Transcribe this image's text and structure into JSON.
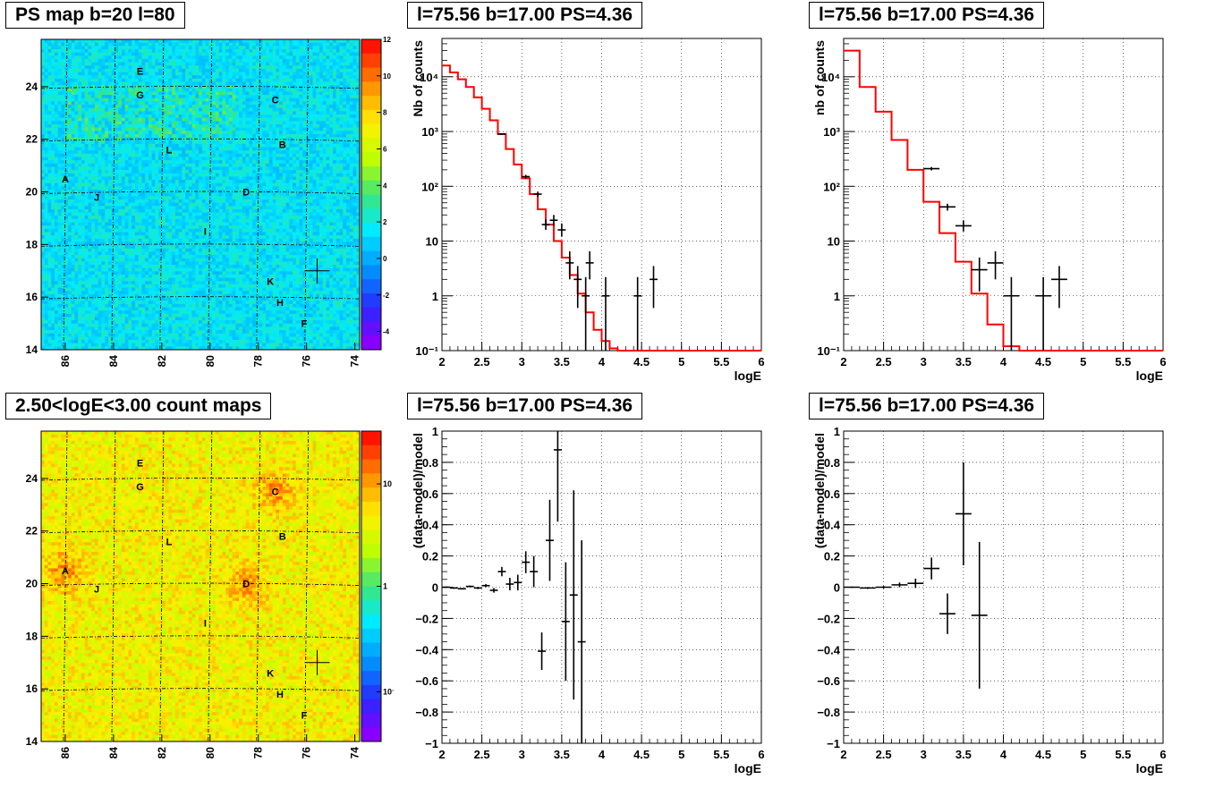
{
  "chart_data": [
    {
      "id": "ps_map",
      "type": "heatmap",
      "title": "PS map b=20 l=80",
      "xlim": [
        87,
        73.8
      ],
      "ylim": [
        14,
        25.8
      ],
      "xticks": [
        "86",
        "84",
        "82",
        "80",
        "78",
        "76",
        "74"
      ],
      "yticks": [
        "14",
        "16",
        "18",
        "20",
        "22",
        "24"
      ],
      "colorbar": {
        "min": -5,
        "max": 12,
        "ticks": [
          "12",
          "10",
          "8",
          "6",
          "4",
          "2",
          "0",
          "-2",
          "-4"
        ],
        "scale": "linear"
      },
      "dominant_value": 0.5,
      "sources": [
        {
          "label": "E",
          "l": 82.9,
          "b": 24.6
        },
        {
          "label": "G",
          "l": 82.9,
          "b": 23.7
        },
        {
          "label": "C",
          "l": 77.3,
          "b": 23.5
        },
        {
          "label": "L",
          "l": 81.7,
          "b": 21.6
        },
        {
          "label": "B",
          "l": 77.0,
          "b": 21.8
        },
        {
          "label": "A",
          "l": 86.0,
          "b": 20.5
        },
        {
          "label": "J",
          "l": 84.7,
          "b": 19.8
        },
        {
          "label": "D",
          "l": 78.5,
          "b": 20.0
        },
        {
          "label": "I",
          "l": 80.2,
          "b": 18.5
        },
        {
          "label": "K",
          "l": 77.5,
          "b": 16.6
        },
        {
          "label": "H",
          "l": 77.1,
          "b": 15.8
        },
        {
          "label": "F",
          "l": 76.1,
          "b": 15.0
        }
      ],
      "marker": {
        "l": 75.56,
        "b": 17.0
      }
    },
    {
      "id": "count_map",
      "type": "heatmap",
      "title": "2.50<logE<3.00 count maps",
      "xlim": [
        87,
        73.8
      ],
      "ylim": [
        14,
        25.8
      ],
      "xticks": [
        "86",
        "84",
        "82",
        "80",
        "78",
        "76",
        "74"
      ],
      "yticks": [
        "14",
        "16",
        "18",
        "20",
        "22",
        "24"
      ],
      "colorbar": {
        "scale": "log",
        "ticks": [
          "10",
          "1",
          "10⁻¹"
        ]
      },
      "sources": [
        {
          "label": "E",
          "l": 82.9,
          "b": 24.6
        },
        {
          "label": "G",
          "l": 82.9,
          "b": 23.7
        },
        {
          "label": "C",
          "l": 77.3,
          "b": 23.5
        },
        {
          "label": "L",
          "l": 81.7,
          "b": 21.6
        },
        {
          "label": "B",
          "l": 77.0,
          "b": 21.8
        },
        {
          "label": "A",
          "l": 86.0,
          "b": 20.5
        },
        {
          "label": "J",
          "l": 84.7,
          "b": 19.8
        },
        {
          "label": "D",
          "l": 78.5,
          "b": 20.0
        },
        {
          "label": "I",
          "l": 80.2,
          "b": 18.5
        },
        {
          "label": "K",
          "l": 77.5,
          "b": 16.6
        },
        {
          "label": "H",
          "l": 77.1,
          "b": 15.8
        },
        {
          "label": "F",
          "l": 76.1,
          "b": 15.0
        }
      ],
      "marker": {
        "l": 75.56,
        "b": 17.0
      }
    },
    {
      "id": "spectrum_fine",
      "type": "line",
      "title": "l=75.56 b=17.00 PS=4.36",
      "xlabel": "logE",
      "ylabel": "Nb of counts",
      "xlim": [
        2,
        6
      ],
      "ylim": [
        0.1,
        50000
      ],
      "yscale": "log",
      "xticks": [
        "2",
        "2.5",
        "3",
        "3.5",
        "4",
        "4.5",
        "5",
        "5.5",
        "6"
      ],
      "yticks": [
        "10⁻¹",
        "1",
        "10",
        "10²",
        "10³",
        "10⁴"
      ],
      "grid": true,
      "model_step": {
        "edges": [
          2.0,
          2.1,
          2.2,
          2.3,
          2.4,
          2.5,
          2.6,
          2.7,
          2.8,
          2.9,
          3.0,
          3.1,
          3.2,
          3.3,
          3.4,
          3.5,
          3.6,
          3.7,
          3.8,
          3.9,
          4.0,
          4.1,
          4.2,
          4.3,
          6.0
        ],
        "values": [
          16000,
          12000,
          9000,
          6500,
          4200,
          2600,
          1600,
          900,
          480,
          250,
          140,
          72,
          38,
          20,
          10,
          5,
          2.4,
          1.1,
          0.5,
          0.24,
          0.15,
          0.11,
          0.1,
          0.1
        ]
      },
      "data_points": [
        {
          "x": 2.75,
          "y": 900,
          "xerr": 0.05,
          "ylo": 870,
          "yhi": 930
        },
        {
          "x": 3.05,
          "y": 150,
          "xerr": 0.05,
          "ylo": 138,
          "yhi": 162
        },
        {
          "x": 3.2,
          "y": 72,
          "xerr": 0.05,
          "ylo": 64,
          "yhi": 80
        },
        {
          "x": 3.3,
          "y": 20,
          "xerr": 0.05,
          "ylo": 16,
          "yhi": 25
        },
        {
          "x": 3.4,
          "y": 24,
          "xerr": 0.05,
          "ylo": 19,
          "yhi": 30
        },
        {
          "x": 3.5,
          "y": 16,
          "xerr": 0.05,
          "ylo": 12,
          "yhi": 21
        },
        {
          "x": 3.6,
          "y": 4,
          "xerr": 0.05,
          "ylo": 2,
          "yhi": 6.5
        },
        {
          "x": 3.7,
          "y": 2,
          "xerr": 0.05,
          "ylo": 0.6,
          "yhi": 3.5
        },
        {
          "x": 3.8,
          "y": 1,
          "xerr": 0.05,
          "ylo": 0.1,
          "yhi": 2.2
        },
        {
          "x": 3.85,
          "y": 4,
          "xerr": 0.05,
          "ylo": 2,
          "yhi": 6.5
        },
        {
          "x": 4.05,
          "y": 1,
          "xerr": 0.05,
          "ylo": 0.1,
          "yhi": 2.2
        },
        {
          "x": 4.45,
          "y": 1,
          "xerr": 0.05,
          "ylo": 0.1,
          "yhi": 2.2
        },
        {
          "x": 4.65,
          "y": 2,
          "xerr": 0.05,
          "ylo": 0.6,
          "yhi": 3.5
        }
      ]
    },
    {
      "id": "spectrum_coarse",
      "type": "line",
      "title": "l=75.56 b=17.00 PS=4.36",
      "xlabel": "logE",
      "ylabel": "nb of counts",
      "xlim": [
        2,
        6
      ],
      "ylim": [
        0.1,
        50000
      ],
      "yscale": "log",
      "xticks": [
        "2",
        "2.5",
        "3",
        "3.5",
        "4",
        "4.5",
        "5",
        "5.5",
        "6"
      ],
      "yticks": [
        "10⁻¹",
        "1",
        "10",
        "10²",
        "10³",
        "10⁴"
      ],
      "grid": true,
      "model_step": {
        "edges": [
          2.0,
          2.2,
          2.4,
          2.6,
          2.8,
          3.0,
          3.2,
          3.4,
          3.6,
          3.8,
          4.0,
          4.2,
          6.0
        ],
        "values": [
          30000,
          6500,
          2300,
          700,
          200,
          52,
          14,
          4.2,
          1.1,
          0.3,
          0.12,
          0.1
        ]
      },
      "data_points": [
        {
          "x": 3.1,
          "y": 210,
          "xerr": 0.1,
          "ylo": 195,
          "yhi": 225
        },
        {
          "x": 3.3,
          "y": 42,
          "xerr": 0.1,
          "ylo": 36,
          "yhi": 48
        },
        {
          "x": 3.5,
          "y": 19,
          "xerr": 0.1,
          "ylo": 15,
          "yhi": 24
        },
        {
          "x": 3.7,
          "y": 3,
          "xerr": 0.1,
          "ylo": 1.2,
          "yhi": 5
        },
        {
          "x": 3.9,
          "y": 4,
          "xerr": 0.1,
          "ylo": 2,
          "yhi": 6.5
        },
        {
          "x": 4.1,
          "y": 1,
          "xerr": 0.1,
          "ylo": 0.1,
          "yhi": 2.2
        },
        {
          "x": 4.5,
          "y": 1,
          "xerr": 0.1,
          "ylo": 0.1,
          "yhi": 2.2
        },
        {
          "x": 4.7,
          "y": 2,
          "xerr": 0.1,
          "ylo": 0.6,
          "yhi": 3.5
        }
      ]
    },
    {
      "id": "residual_fine",
      "type": "scatter",
      "title": "l=75.56 b=17.00 PS=4.36",
      "xlabel": "logE",
      "ylabel": "(data-model)/model",
      "xlim": [
        2,
        6
      ],
      "ylim": [
        -1,
        1
      ],
      "xticks": [
        "2",
        "2.5",
        "3",
        "3.5",
        "4",
        "4.5",
        "5",
        "5.5",
        "6"
      ],
      "yticks": [
        "−1",
        "−0.8",
        "−0.6",
        "−0.4",
        "−0.2",
        "0",
        "0.2",
        "0.4",
        "0.6",
        "0.8",
        "1"
      ],
      "grid": true,
      "points": [
        {
          "x": 2.05,
          "y": 0.0,
          "xerr": 0.05,
          "yerr": 0.005
        },
        {
          "x": 2.15,
          "y": -0.005,
          "xerr": 0.05,
          "yerr": 0.005
        },
        {
          "x": 2.25,
          "y": -0.01,
          "xerr": 0.05,
          "yerr": 0.005
        },
        {
          "x": 2.35,
          "y": 0.005,
          "xerr": 0.05,
          "yerr": 0.006
        },
        {
          "x": 2.45,
          "y": -0.005,
          "xerr": 0.05,
          "yerr": 0.007
        },
        {
          "x": 2.55,
          "y": 0.01,
          "xerr": 0.05,
          "yerr": 0.01
        },
        {
          "x": 2.65,
          "y": -0.02,
          "xerr": 0.05,
          "yerr": 0.015
        },
        {
          "x": 2.75,
          "y": 0.1,
          "xerr": 0.05,
          "yerr": 0.03
        },
        {
          "x": 2.85,
          "y": 0.02,
          "xerr": 0.05,
          "yerr": 0.04
        },
        {
          "x": 2.95,
          "y": 0.03,
          "xerr": 0.05,
          "yerr": 0.05
        },
        {
          "x": 3.05,
          "y": 0.16,
          "xerr": 0.05,
          "yerr": 0.07
        },
        {
          "x": 3.15,
          "y": 0.1,
          "xerr": 0.05,
          "yerr": 0.1
        },
        {
          "x": 3.25,
          "y": -0.41,
          "xerr": 0.05,
          "yerr": 0.12
        },
        {
          "x": 3.35,
          "y": 0.3,
          "xerr": 0.05,
          "yerr": 0.26
        },
        {
          "x": 3.45,
          "y": 0.88,
          "xerr": 0.05,
          "yerr": 0.46
        },
        {
          "x": 3.55,
          "y": -0.22,
          "xerr": 0.05,
          "yerr": 0.38
        },
        {
          "x": 3.65,
          "y": -0.05,
          "xerr": 0.05,
          "yerr": 0.67
        },
        {
          "x": 3.75,
          "y": -0.35,
          "xerr": 0.05,
          "yerr": 0.65
        }
      ]
    },
    {
      "id": "residual_coarse",
      "type": "scatter",
      "title": "l=75.56 b=17.00 PS=4.36",
      "xlabel": "logE",
      "ylabel": "(data-model)/model",
      "xlim": [
        2,
        6
      ],
      "ylim": [
        -1,
        1
      ],
      "xticks": [
        "2",
        "2.5",
        "3",
        "3.5",
        "4",
        "4.5",
        "5",
        "5.5",
        "6"
      ],
      "yticks": [
        "−1",
        "−0.8",
        "−0.6",
        "−0.4",
        "−0.2",
        "0",
        "0.2",
        "0.4",
        "0.6",
        "0.8",
        "1"
      ],
      "grid": true,
      "points": [
        {
          "x": 2.1,
          "y": 0.0,
          "xerr": 0.1,
          "yerr": 0.004
        },
        {
          "x": 2.3,
          "y": -0.005,
          "xerr": 0.1,
          "yerr": 0.006
        },
        {
          "x": 2.5,
          "y": 0.0,
          "xerr": 0.1,
          "yerr": 0.008
        },
        {
          "x": 2.7,
          "y": 0.015,
          "xerr": 0.1,
          "yerr": 0.015
        },
        {
          "x": 2.9,
          "y": 0.025,
          "xerr": 0.1,
          "yerr": 0.03
        },
        {
          "x": 3.1,
          "y": 0.12,
          "xerr": 0.1,
          "yerr": 0.07
        },
        {
          "x": 3.3,
          "y": -0.17,
          "xerr": 0.1,
          "yerr": 0.13
        },
        {
          "x": 3.5,
          "y": 0.47,
          "xerr": 0.1,
          "yerr": 0.33
        },
        {
          "x": 3.7,
          "y": -0.18,
          "xerr": 0.1,
          "yerr": 0.47
        }
      ]
    }
  ]
}
